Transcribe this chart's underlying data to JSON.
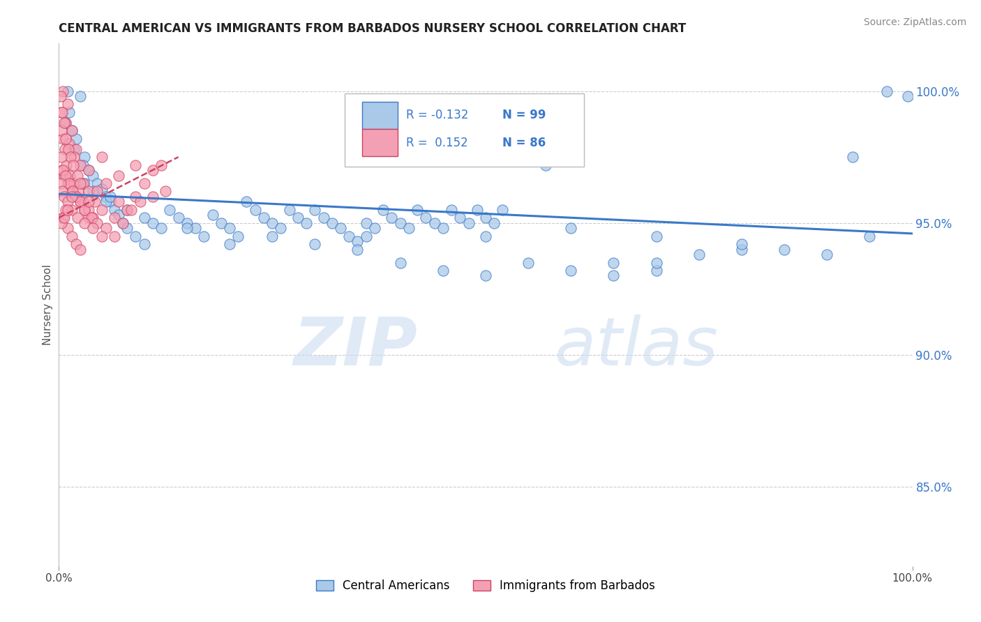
{
  "title": "CENTRAL AMERICAN VS IMMIGRANTS FROM BARBADOS NURSERY SCHOOL CORRELATION CHART",
  "source": "Source: ZipAtlas.com",
  "ylabel": "Nursery School",
  "yticks": [
    85.0,
    90.0,
    95.0,
    100.0
  ],
  "ytick_labels": [
    "85.0%",
    "90.0%",
    "95.0%",
    "100.0%"
  ],
  "xmin": 0.0,
  "xmax": 100.0,
  "ymin": 82.0,
  "ymax": 101.8,
  "legend_label1": "Central Americans",
  "legend_label2": "Immigrants from Barbados",
  "blue_color": "#aac9e8",
  "pink_color": "#f4a0b4",
  "trendline_blue": "#3a78c9",
  "trendline_pink": "#d04060",
  "watermark_zip": "ZIP",
  "watermark_atlas": "atlas",
  "blue_trend_x": [
    0.0,
    100.0
  ],
  "blue_trend_y": [
    96.1,
    94.6
  ],
  "pink_trend_x": [
    0.0,
    14.0
  ],
  "pink_trend_y": [
    95.2,
    97.5
  ],
  "blue_scatter": [
    [
      1.0,
      100.0
    ],
    [
      2.5,
      99.8
    ],
    [
      1.2,
      99.2
    ],
    [
      0.8,
      98.8
    ],
    [
      1.5,
      98.5
    ],
    [
      2.0,
      98.2
    ],
    [
      1.8,
      97.8
    ],
    [
      3.0,
      97.5
    ],
    [
      2.8,
      97.2
    ],
    [
      3.5,
      97.0
    ],
    [
      4.0,
      96.8
    ],
    [
      4.5,
      96.5
    ],
    [
      5.0,
      96.3
    ],
    [
      5.5,
      96.0
    ],
    [
      6.0,
      95.8
    ],
    [
      6.5,
      95.5
    ],
    [
      7.0,
      95.3
    ],
    [
      7.5,
      95.0
    ],
    [
      8.0,
      94.8
    ],
    [
      9.0,
      94.5
    ],
    [
      10.0,
      95.2
    ],
    [
      11.0,
      95.0
    ],
    [
      12.0,
      94.8
    ],
    [
      13.0,
      95.5
    ],
    [
      14.0,
      95.2
    ],
    [
      15.0,
      95.0
    ],
    [
      16.0,
      94.8
    ],
    [
      17.0,
      94.5
    ],
    [
      18.0,
      95.3
    ],
    [
      19.0,
      95.0
    ],
    [
      20.0,
      94.8
    ],
    [
      21.0,
      94.5
    ],
    [
      22.0,
      95.8
    ],
    [
      23.0,
      95.5
    ],
    [
      24.0,
      95.2
    ],
    [
      25.0,
      95.0
    ],
    [
      26.0,
      94.8
    ],
    [
      27.0,
      95.5
    ],
    [
      28.0,
      95.2
    ],
    [
      29.0,
      95.0
    ],
    [
      30.0,
      95.5
    ],
    [
      31.0,
      95.2
    ],
    [
      32.0,
      95.0
    ],
    [
      33.0,
      94.8
    ],
    [
      34.0,
      94.5
    ],
    [
      35.0,
      94.3
    ],
    [
      36.0,
      95.0
    ],
    [
      37.0,
      94.8
    ],
    [
      38.0,
      95.5
    ],
    [
      39.0,
      95.2
    ],
    [
      40.0,
      95.0
    ],
    [
      41.0,
      94.8
    ],
    [
      42.0,
      95.5
    ],
    [
      43.0,
      95.2
    ],
    [
      44.0,
      95.0
    ],
    [
      45.0,
      94.8
    ],
    [
      46.0,
      95.5
    ],
    [
      47.0,
      95.2
    ],
    [
      48.0,
      95.0
    ],
    [
      49.0,
      95.5
    ],
    [
      50.0,
      95.2
    ],
    [
      51.0,
      95.0
    ],
    [
      52.0,
      95.5
    ],
    [
      55.0,
      97.5
    ],
    [
      57.0,
      97.2
    ],
    [
      40.0,
      93.5
    ],
    [
      45.0,
      93.2
    ],
    [
      50.0,
      93.0
    ],
    [
      55.0,
      93.5
    ],
    [
      60.0,
      93.2
    ],
    [
      65.0,
      93.5
    ],
    [
      70.0,
      93.2
    ],
    [
      75.0,
      93.8
    ],
    [
      80.0,
      94.0
    ],
    [
      65.0,
      93.0
    ],
    [
      70.0,
      93.5
    ],
    [
      3.0,
      96.5
    ],
    [
      4.0,
      96.2
    ],
    [
      5.5,
      95.8
    ],
    [
      35.0,
      94.0
    ],
    [
      36.0,
      94.5
    ],
    [
      30.0,
      94.2
    ],
    [
      25.0,
      94.5
    ],
    [
      20.0,
      94.2
    ],
    [
      15.0,
      94.8
    ],
    [
      10.0,
      94.2
    ],
    [
      8.0,
      95.5
    ],
    [
      6.0,
      96.0
    ],
    [
      50.0,
      94.5
    ],
    [
      60.0,
      94.8
    ],
    [
      70.0,
      94.5
    ],
    [
      80.0,
      94.2
    ],
    [
      85.0,
      94.0
    ],
    [
      90.0,
      93.8
    ],
    [
      95.0,
      94.5
    ],
    [
      97.0,
      100.0
    ],
    [
      99.5,
      99.8
    ],
    [
      93.0,
      97.5
    ]
  ],
  "pink_scatter": [
    [
      0.5,
      100.0
    ],
    [
      1.0,
      99.5
    ],
    [
      0.3,
      99.2
    ],
    [
      0.8,
      98.8
    ],
    [
      1.5,
      98.5
    ],
    [
      0.5,
      98.2
    ],
    [
      1.2,
      98.0
    ],
    [
      2.0,
      97.8
    ],
    [
      1.8,
      97.5
    ],
    [
      2.5,
      97.2
    ],
    [
      0.4,
      97.0
    ],
    [
      0.6,
      96.8
    ],
    [
      1.0,
      96.5
    ],
    [
      1.5,
      96.2
    ],
    [
      2.0,
      96.0
    ],
    [
      2.5,
      95.8
    ],
    [
      3.0,
      95.5
    ],
    [
      3.5,
      95.2
    ],
    [
      0.3,
      98.5
    ],
    [
      0.7,
      97.8
    ],
    [
      0.9,
      97.2
    ],
    [
      1.3,
      96.8
    ],
    [
      1.8,
      96.5
    ],
    [
      2.3,
      96.2
    ],
    [
      2.8,
      95.8
    ],
    [
      3.5,
      95.5
    ],
    [
      4.0,
      95.2
    ],
    [
      0.2,
      99.8
    ],
    [
      0.4,
      99.2
    ],
    [
      0.6,
      98.8
    ],
    [
      0.8,
      98.2
    ],
    [
      1.1,
      97.8
    ],
    [
      1.4,
      97.5
    ],
    [
      1.7,
      97.2
    ],
    [
      2.2,
      96.8
    ],
    [
      2.8,
      96.5
    ],
    [
      3.5,
      96.2
    ],
    [
      4.2,
      95.8
    ],
    [
      5.0,
      95.5
    ],
    [
      0.3,
      97.5
    ],
    [
      0.5,
      97.0
    ],
    [
      0.8,
      96.8
    ],
    [
      1.2,
      96.5
    ],
    [
      1.6,
      96.2
    ],
    [
      2.0,
      96.0
    ],
    [
      2.5,
      95.8
    ],
    [
      3.0,
      95.5
    ],
    [
      3.8,
      95.2
    ],
    [
      4.5,
      95.0
    ],
    [
      5.5,
      94.8
    ],
    [
      6.5,
      94.5
    ],
    [
      0.2,
      96.5
    ],
    [
      0.4,
      96.2
    ],
    [
      0.6,
      96.0
    ],
    [
      1.0,
      95.8
    ],
    [
      1.5,
      95.5
    ],
    [
      2.2,
      95.2
    ],
    [
      3.0,
      95.0
    ],
    [
      4.0,
      94.8
    ],
    [
      5.0,
      94.5
    ],
    [
      7.0,
      95.8
    ],
    [
      8.0,
      95.5
    ],
    [
      9.0,
      96.0
    ],
    [
      10.0,
      96.5
    ],
    [
      11.0,
      97.0
    ],
    [
      12.0,
      97.2
    ],
    [
      0.5,
      95.2
    ],
    [
      0.8,
      95.5
    ],
    [
      1.0,
      94.8
    ],
    [
      1.5,
      94.5
    ],
    [
      2.0,
      94.2
    ],
    [
      2.5,
      94.0
    ],
    [
      3.5,
      95.8
    ],
    [
      4.5,
      96.2
    ],
    [
      5.5,
      96.5
    ],
    [
      6.5,
      95.2
    ],
    [
      7.5,
      95.0
    ],
    [
      8.5,
      95.5
    ],
    [
      9.5,
      95.8
    ],
    [
      11.0,
      96.0
    ],
    [
      12.5,
      96.2
    ],
    [
      0.3,
      95.0
    ],
    [
      0.6,
      95.2
    ],
    [
      1.0,
      95.5
    ],
    [
      1.5,
      96.0
    ],
    [
      2.5,
      96.5
    ],
    [
      3.5,
      97.0
    ],
    [
      5.0,
      97.5
    ],
    [
      7.0,
      96.8
    ],
    [
      9.0,
      97.2
    ]
  ]
}
